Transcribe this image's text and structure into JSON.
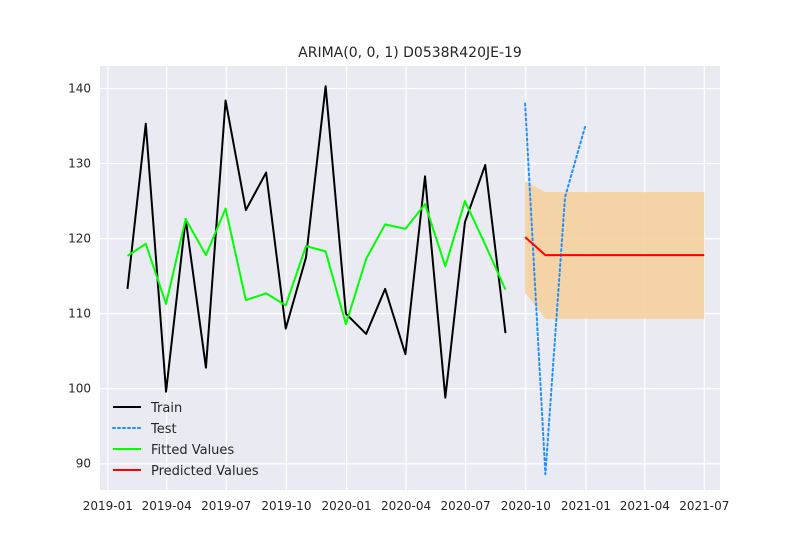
{
  "chart_data": {
    "type": "line",
    "title": "ARIMA(0, 0, 1) D0538R420JE-19",
    "xlabel": "",
    "ylabel": "",
    "x_axis_type": "date",
    "xlim": [
      "2018-12-20",
      "2021-07-25"
    ],
    "ylim": [
      86.5,
      143.0
    ],
    "x_ticks": [
      "2019-01",
      "2019-04",
      "2019-07",
      "2019-10",
      "2020-01",
      "2020-04",
      "2020-07",
      "2020-10",
      "2021-01",
      "2021-04",
      "2021-07"
    ],
    "x_tick_labels": [
      "2019-01",
      "2019-04",
      "2019-07",
      "2019-10",
      "2020-01",
      "2020-04",
      "2020-07",
      "2020-10",
      "2021-01",
      "2021-04",
      "2021-07"
    ],
    "y_ticks": [
      90,
      100,
      110,
      120,
      130,
      140
    ],
    "grid": true,
    "legend_position": "lower-left",
    "series": [
      {
        "name": "Train",
        "style": "solid",
        "color": "#000000",
        "x": [
          "2019-01-31",
          "2019-02-28",
          "2019-03-31",
          "2019-04-30",
          "2019-05-31",
          "2019-06-30",
          "2019-07-31",
          "2019-08-31",
          "2019-09-30",
          "2019-10-31",
          "2019-11-30",
          "2019-12-31",
          "2020-01-31",
          "2020-02-29",
          "2020-03-31",
          "2020-04-30",
          "2020-05-31",
          "2020-06-30",
          "2020-07-31",
          "2020-08-31"
        ],
        "y": [
          113.3,
          135.3,
          99.6,
          122.6,
          102.8,
          138.4,
          123.8,
          128.8,
          108.0,
          117.5,
          140.3,
          110.0,
          107.3,
          113.3,
          104.6,
          128.3,
          98.8,
          122.2,
          129.8,
          107.4
        ]
      },
      {
        "name": "Test",
        "style": "dotted",
        "color": "#1e8fff",
        "x": [
          "2020-09-30",
          "2020-10-31",
          "2020-11-30",
          "2020-12-31"
        ],
        "y": [
          138.0,
          88.6,
          125.5,
          135.0
        ]
      },
      {
        "name": "Fitted Values",
        "style": "solid",
        "color": "#00ff00",
        "x": [
          "2019-01-31",
          "2019-02-28",
          "2019-03-31",
          "2019-04-30",
          "2019-05-31",
          "2019-06-30",
          "2019-07-31",
          "2019-08-31",
          "2019-09-30",
          "2019-10-31",
          "2019-11-30",
          "2019-12-31",
          "2020-01-31",
          "2020-02-29",
          "2020-03-31",
          "2020-04-30",
          "2020-05-31",
          "2020-06-30",
          "2020-07-31",
          "2020-08-31"
        ],
        "y": [
          117.7,
          119.3,
          111.3,
          122.6,
          117.8,
          124.0,
          111.8,
          112.7,
          111.1,
          119.0,
          118.3,
          108.6,
          117.3,
          121.9,
          121.3,
          124.6,
          116.3,
          125.0,
          119.2,
          113.2
        ]
      },
      {
        "name": "Predicted Values",
        "style": "solid",
        "color": "#ff0000",
        "x": [
          "2020-09-30",
          "2020-10-31",
          "2020-11-30",
          "2020-12-31",
          "2021-01-31",
          "2021-02-28",
          "2021-03-31",
          "2021-04-30",
          "2021-05-31",
          "2021-06-30",
          "2021-07-01"
        ],
        "y": [
          120.2,
          117.8,
          117.8,
          117.8,
          117.8,
          117.8,
          117.8,
          117.8,
          117.8,
          117.8,
          117.8
        ]
      }
    ],
    "confidence_band": {
      "color": "#f5d09e",
      "x": [
        "2020-09-30",
        "2020-10-31",
        "2020-11-30",
        "2020-12-31",
        "2021-01-31",
        "2021-02-28",
        "2021-03-31",
        "2021-04-30",
        "2021-05-31",
        "2021-06-30",
        "2021-07-01"
      ],
      "lower": [
        112.8,
        109.3,
        109.3,
        109.3,
        109.3,
        109.3,
        109.3,
        109.3,
        109.3,
        109.3,
        109.3
      ],
      "upper": [
        127.6,
        126.2,
        126.2,
        126.2,
        126.2,
        126.2,
        126.2,
        126.2,
        126.2,
        126.2,
        126.2
      ]
    }
  }
}
